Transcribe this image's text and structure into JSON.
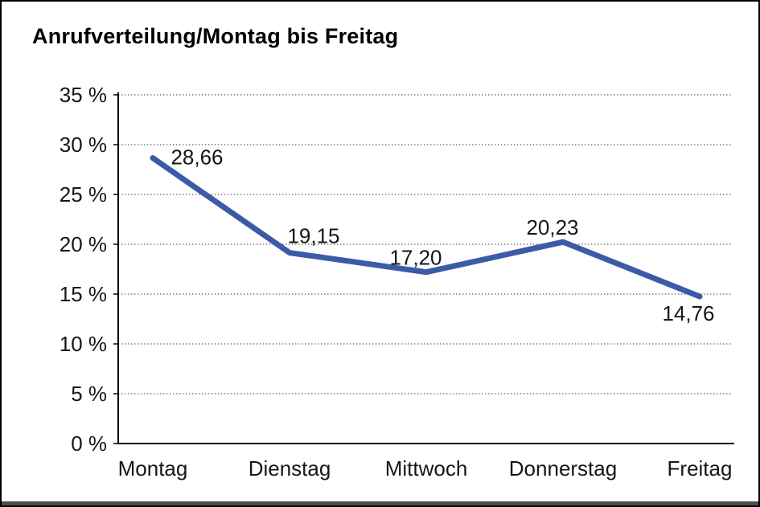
{
  "title": "Anrufverteilung/Montag bis Freitag",
  "chart_data": {
    "type": "line",
    "title": "Anrufverteilung/Montag bis Freitag",
    "categories": [
      "Montag",
      "Dienstag",
      "Mittwoch",
      "Donnerstag",
      "Freitag"
    ],
    "series": [
      {
        "name": "Anrufverteilung",
        "values": [
          28.66,
          19.15,
          17.2,
          20.23,
          14.76
        ]
      }
    ],
    "point_labels": [
      "28,66",
      "19,15",
      "17,20",
      "20,23",
      "14,76"
    ],
    "ylim": [
      0,
      35
    ],
    "ytick_step": 5,
    "ytick_labels": [
      "0 %",
      "5 %",
      "10 %",
      "15 %",
      "20 %",
      "25 %",
      "30 %",
      "35 %"
    ],
    "grid": "horizontal-dotted",
    "legend": "none",
    "colors": {
      "line": "#3C5BA7",
      "gridline": "#5a5a5a",
      "axis": "#000000",
      "text": "#161616"
    }
  }
}
